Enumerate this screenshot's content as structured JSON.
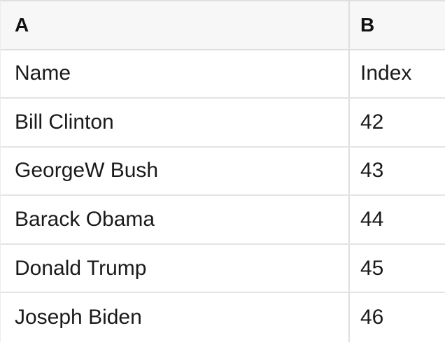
{
  "table": {
    "column_headers": [
      "A",
      "B"
    ],
    "rows": [
      {
        "a": "Name",
        "b": "Index"
      },
      {
        "a": "Bill Clinton",
        "b": "42"
      },
      {
        "a": "GeorgeW Bush",
        "b": "43"
      },
      {
        "a": "Barack Obama",
        "b": "44"
      },
      {
        "a": "Donald Trump",
        "b": "45"
      },
      {
        "a": "Joseph Biden",
        "b": "46"
      }
    ]
  },
  "colors": {
    "header_background": "#f7f7f7",
    "row_background": "#ffffff",
    "border": "#e0e0e0",
    "text": "#1a1a1a"
  }
}
